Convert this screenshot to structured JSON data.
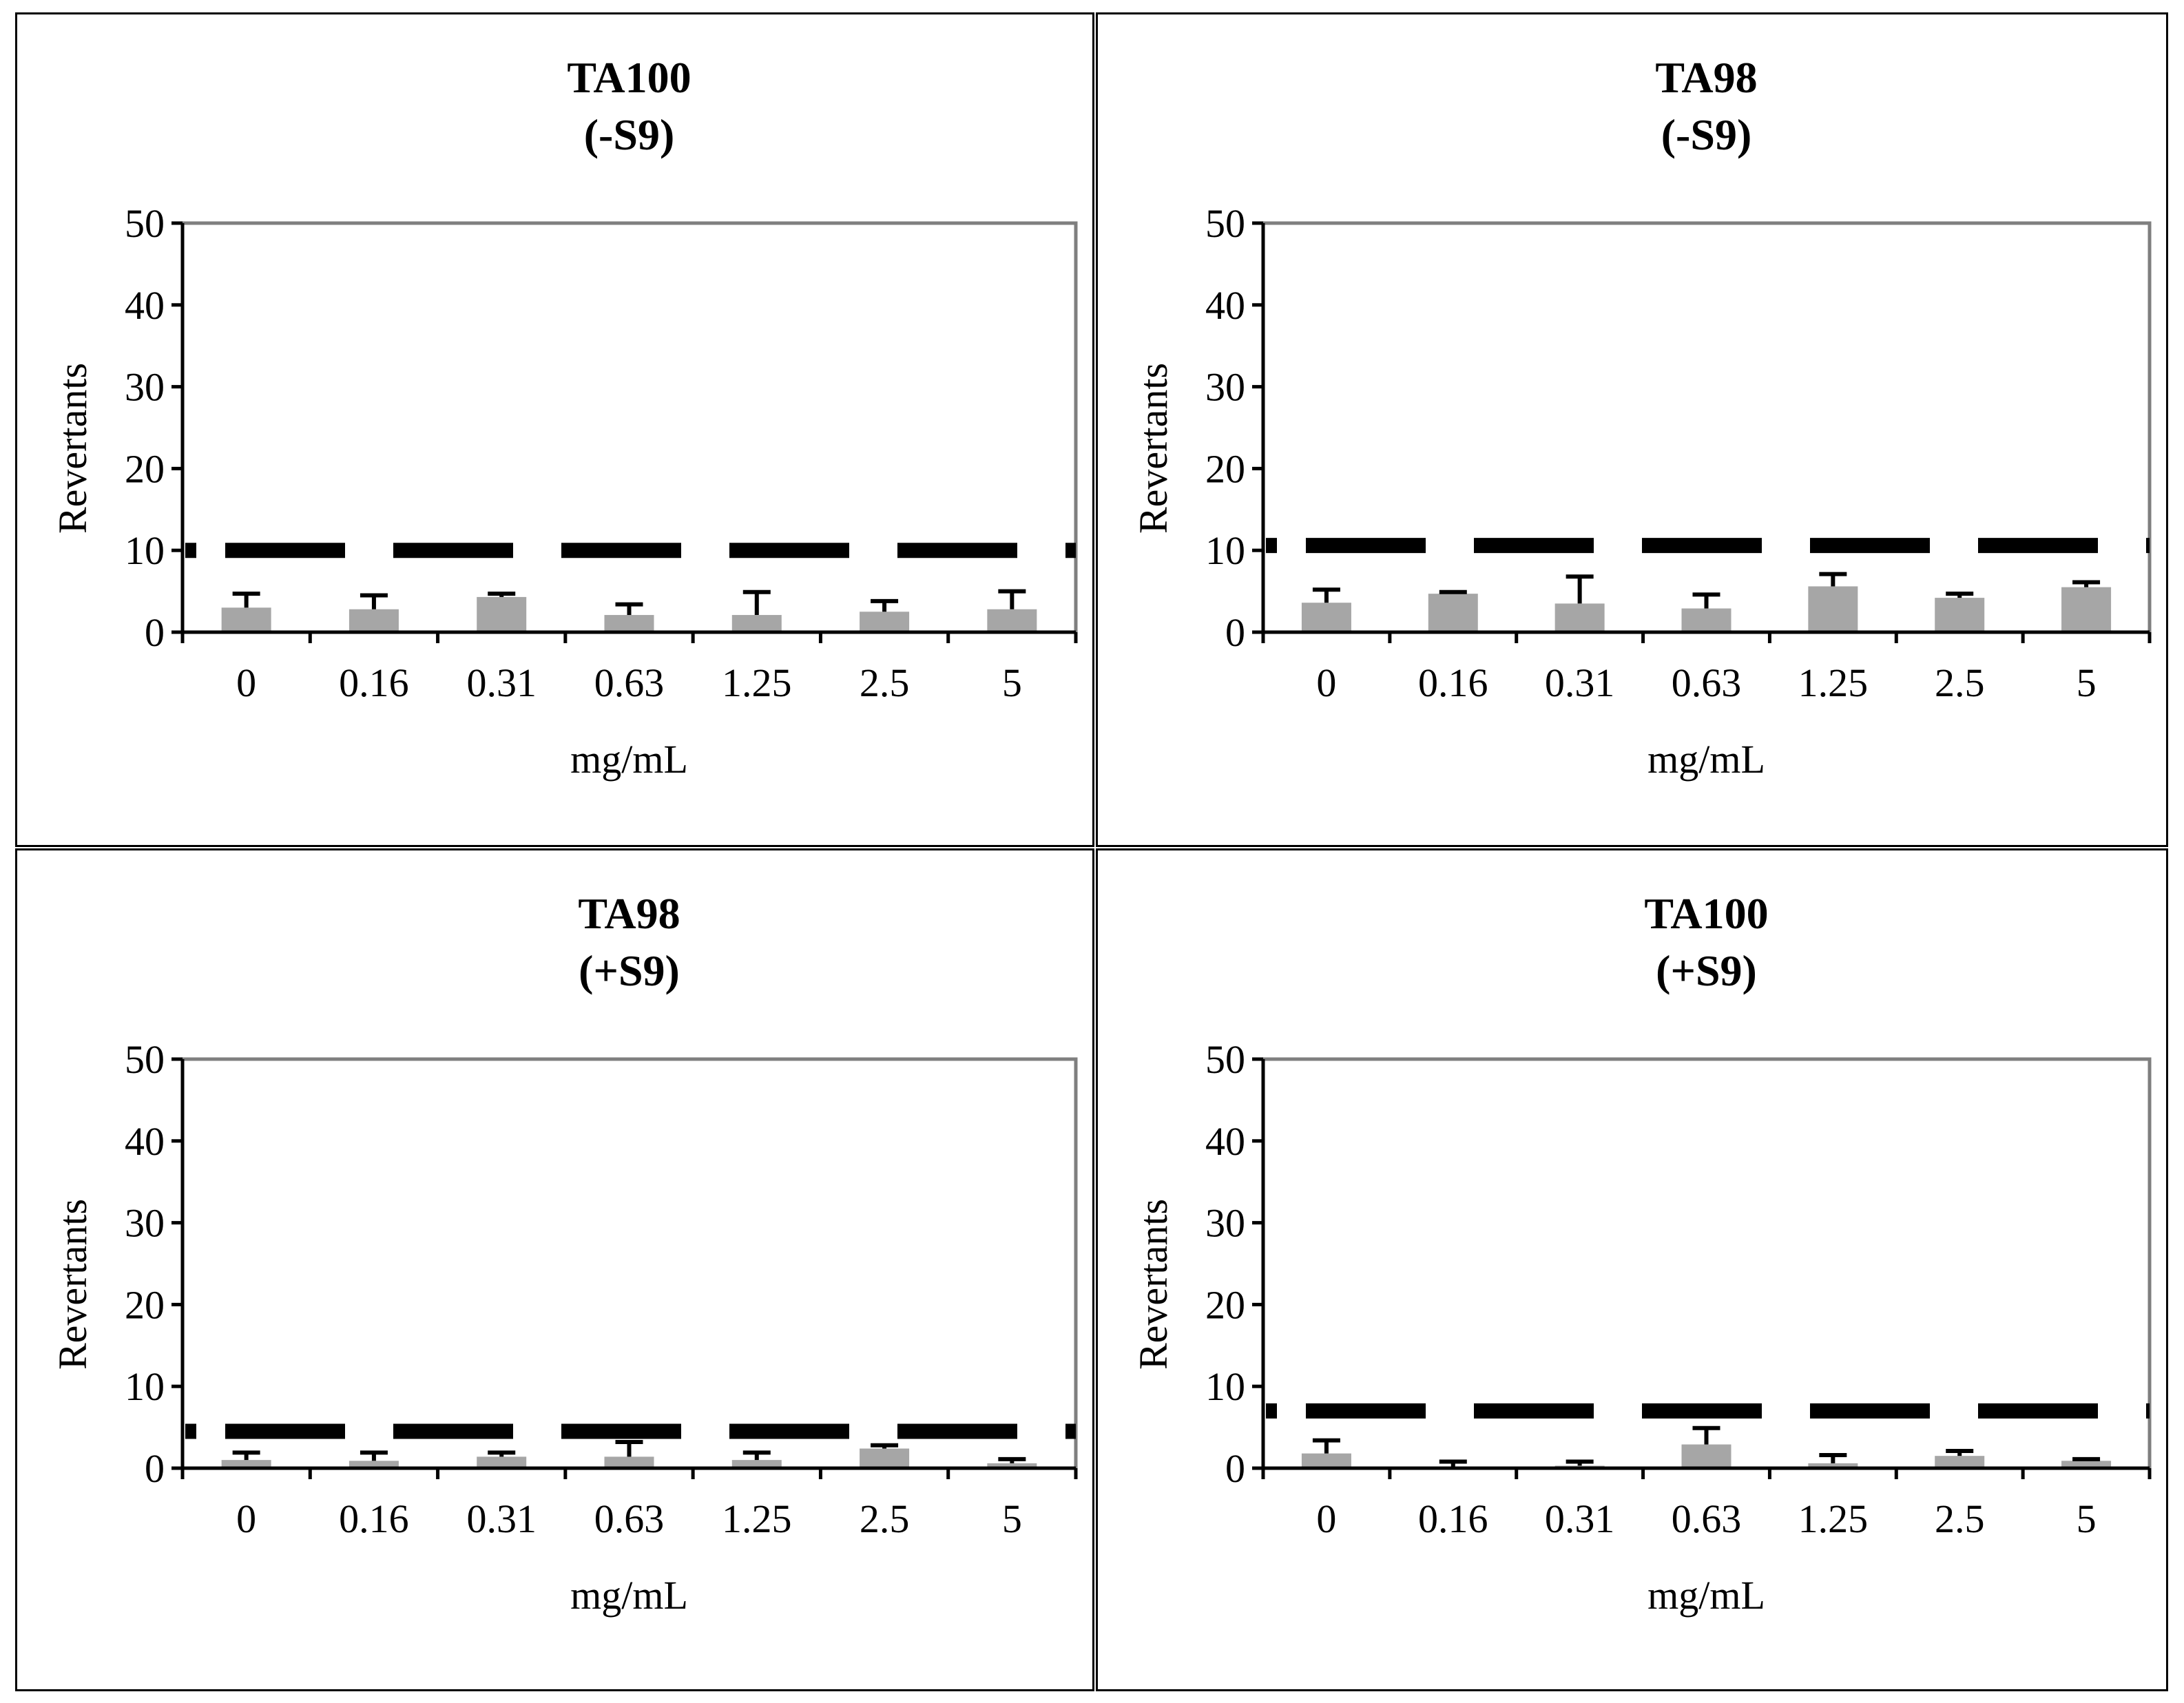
{
  "colors": {
    "bar": "#a6a6a6",
    "control_line": "#000000",
    "axis": "#000000",
    "plot_border": "#7f7f7f"
  },
  "chart_data": [
    {
      "type": "bar",
      "title": "TA100",
      "subtitle": "(-S9)",
      "categories": [
        "0",
        "0.16",
        "0.31",
        "0.63",
        "1.25",
        "2.5",
        "5"
      ],
      "values": [
        3,
        2.8,
        4.3,
        2.1,
        2.1,
        2.5,
        2.8
      ],
      "errors": [
        1.7,
        1.7,
        0.4,
        1.3,
        2.8,
        1.3,
        2.2
      ],
      "control_line": 10,
      "xlabel": "mg/mL",
      "ylabel": "Revertants",
      "ylim": [
        0,
        50
      ],
      "yticks": [
        "0",
        "10",
        "20",
        "30",
        "40",
        "50"
      ],
      "grid": false
    },
    {
      "type": "bar",
      "title": "TA98",
      "subtitle": "(-S9)",
      "categories": [
        "0",
        "0.16",
        "0.31",
        "0.63",
        "1.25",
        "2.5",
        "5"
      ],
      "values": [
        3.6,
        4.7,
        3.5,
        2.9,
        5.6,
        4.2,
        5.5
      ],
      "errors": [
        1.6,
        0.2,
        3.3,
        1.7,
        1.5,
        0.5,
        0.6
      ],
      "control_line": 10.6,
      "xlabel": "mg/mL",
      "ylabel": "Revertants",
      "ylim": [
        0,
        50
      ],
      "yticks": [
        "0",
        "10",
        "20",
        "30",
        "40",
        "50"
      ],
      "grid": false
    },
    {
      "type": "bar",
      "title": "TA98",
      "subtitle": "(+S9)",
      "categories": [
        "0",
        "0.16",
        "0.31",
        "0.63",
        "1.25",
        "2.5",
        "5"
      ],
      "values": [
        1.0,
        0.9,
        1.4,
        1.4,
        1.0,
        2.4,
        0.6
      ],
      "errors": [
        0.9,
        1.0,
        0.5,
        1.8,
        0.9,
        0.4,
        0.5
      ],
      "control_line": 4.5,
      "xlabel": "mg/mL",
      "ylabel": "Revertants",
      "ylim": [
        0,
        50
      ],
      "yticks": [
        "0",
        "10",
        "20",
        "30",
        "40",
        "50"
      ],
      "grid": false
    },
    {
      "type": "bar",
      "title": "TA100",
      "subtitle": "(+S9)",
      "categories": [
        "0",
        "0.16",
        "0.31",
        "0.63",
        "1.25",
        "2.5",
        "5"
      ],
      "values": [
        1.8,
        0.2,
        0.3,
        2.9,
        0.6,
        1.5,
        0.9
      ],
      "errors": [
        1.6,
        0.6,
        0.5,
        2.0,
        1.0,
        0.6,
        0.2
      ],
      "control_line": 7,
      "xlabel": "mg/mL",
      "ylabel": "Revertants",
      "ylim": [
        0,
        50
      ],
      "yticks": [
        "0",
        "10",
        "20",
        "30",
        "40",
        "50"
      ],
      "grid": false
    }
  ]
}
